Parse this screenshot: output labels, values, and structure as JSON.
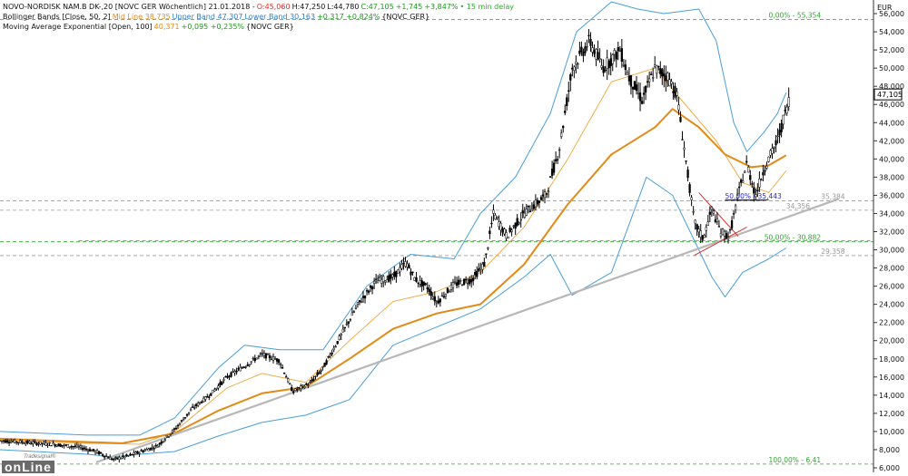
{
  "header": {
    "line1": {
      "instrument": "NOVO-NORDISK NAM.B DK-,20 [NOVC GER Wöchentlich] 21.01.2018 -",
      "open": "O:45,060",
      "high": "H:47,250",
      "low": "L:44,780",
      "close": "C:47,105",
      "change": "+1,745",
      "change_pct": "+3,847%",
      "delay": "• 15 min delay"
    },
    "line2": {
      "name": "Bollinger Bands [Close, 50, 2]",
      "mid": "Mid Line 38,735",
      "upper": "Upper Band 47,307",
      "lower": "Lower Band 30,163",
      "change": "+0,317 +0,824%",
      "suffix": "{NOVC GER}"
    },
    "line3": {
      "name": "Moving Average Exponential [Open, 100]",
      "value": "40,371",
      "change": "+0,095 +0,235%",
      "suffix": "{NOVC GER}"
    }
  },
  "logo": {
    "small": "Tradesignal®",
    "big": "onLine"
  },
  "colors": {
    "price": "#000000",
    "bollinger": "#4a9ed8",
    "ema": "#e38a16",
    "midline": "#f0a437",
    "trendline": "#b8b8b8",
    "fib_green": "#2aaa2a",
    "fib_gray": "#9a9a9a",
    "triangle": "#d9302b",
    "fib_blue": "#2a2ad0",
    "current_price_box": "#000000"
  },
  "chart_data": {
    "type": "candlestick",
    "currency": "EUR",
    "ylim": [
      5.5,
      57.5
    ],
    "y_ticks": [
      6,
      8,
      10,
      12,
      14,
      16,
      18,
      20,
      22,
      24,
      26,
      28,
      30,
      32,
      34,
      36,
      38,
      40,
      42,
      44,
      46,
      48,
      50,
      52,
      54,
      56
    ],
    "y_tick_labels": [
      "6,000",
      "8,000",
      "10,000",
      "12,000",
      "14,000",
      "16,000",
      "18,000",
      "20,000",
      "22,000",
      "24,000",
      "26,000",
      "28,000",
      "30,000",
      "32,000",
      "34,000",
      "36,000",
      "38,000",
      "40,000",
      "42,000",
      "44,000",
      "46,000",
      "48,000",
      "50,000",
      "52,000",
      "54,000",
      "56,000"
    ],
    "last_price": "47,105",
    "last_price_value": 47.105,
    "price_path": [
      [
        0,
        9.0
      ],
      [
        0.03,
        8.8
      ],
      [
        0.06,
        8.6
      ],
      [
        0.09,
        8.3
      ],
      [
        0.11,
        7.8
      ],
      [
        0.13,
        6.9
      ],
      [
        0.15,
        7.4
      ],
      [
        0.18,
        8.4
      ],
      [
        0.2,
        10.2
      ],
      [
        0.22,
        12.5
      ],
      [
        0.24,
        14.0
      ],
      [
        0.26,
        16.0
      ],
      [
        0.28,
        17.2
      ],
      [
        0.3,
        18.5
      ],
      [
        0.32,
        17.8
      ],
      [
        0.335,
        14.4
      ],
      [
        0.355,
        15.3
      ],
      [
        0.37,
        17.0
      ],
      [
        0.39,
        20.5
      ],
      [
        0.41,
        24.0
      ],
      [
        0.43,
        26.5
      ],
      [
        0.45,
        27.0
      ],
      [
        0.465,
        28.6
      ],
      [
        0.475,
        26.8
      ],
      [
        0.49,
        25.8
      ],
      [
        0.5,
        24.2
      ],
      [
        0.52,
        26.2
      ],
      [
        0.54,
        26.7
      ],
      [
        0.555,
        28.5
      ],
      [
        0.565,
        34.0
      ],
      [
        0.58,
        31.5
      ],
      [
        0.6,
        34.0
      ],
      [
        0.625,
        36.0
      ],
      [
        0.64,
        41.0
      ],
      [
        0.655,
        50.0
      ],
      [
        0.665,
        51.5
      ],
      [
        0.675,
        53.0
      ],
      [
        0.69,
        50.0
      ],
      [
        0.71,
        52.0
      ],
      [
        0.72,
        49.0
      ],
      [
        0.735,
        46.5
      ],
      [
        0.75,
        50.0
      ],
      [
        0.765,
        49.0
      ],
      [
        0.775,
        47.0
      ],
      [
        0.785,
        40.0
      ],
      [
        0.795,
        33.0
      ],
      [
        0.805,
        31.2
      ],
      [
        0.815,
        34.5
      ],
      [
        0.825,
        32.0
      ],
      [
        0.835,
        31.5
      ],
      [
        0.845,
        36.0
      ],
      [
        0.855,
        39.5
      ],
      [
        0.865,
        36.0
      ],
      [
        0.875,
        39.0
      ],
      [
        0.89,
        42.0
      ],
      [
        0.905,
        47.1
      ]
    ],
    "ema_path": [
      [
        0,
        9.2
      ],
      [
        0.08,
        8.9
      ],
      [
        0.14,
        8.7
      ],
      [
        0.2,
        9.8
      ],
      [
        0.25,
        12.3
      ],
      [
        0.3,
        14.2
      ],
      [
        0.35,
        14.9
      ],
      [
        0.4,
        18.0
      ],
      [
        0.45,
        21.3
      ],
      [
        0.5,
        23.0
      ],
      [
        0.55,
        24.0
      ],
      [
        0.6,
        28.4
      ],
      [
        0.65,
        35.0
      ],
      [
        0.7,
        40.5
      ],
      [
        0.75,
        43.5
      ],
      [
        0.77,
        45.5
      ],
      [
        0.8,
        43.5
      ],
      [
        0.83,
        40.5
      ],
      [
        0.86,
        39.1
      ],
      [
        0.88,
        39.3
      ],
      [
        0.9,
        40.4
      ]
    ],
    "midline_path": [
      [
        0,
        9.0
      ],
      [
        0.1,
        8.7
      ],
      [
        0.16,
        8.6
      ],
      [
        0.2,
        10.0
      ],
      [
        0.26,
        14.8
      ],
      [
        0.3,
        16.4
      ],
      [
        0.35,
        15.4
      ],
      [
        0.4,
        20.0
      ],
      [
        0.45,
        24.3
      ],
      [
        0.5,
        25.4
      ],
      [
        0.55,
        27.5
      ],
      [
        0.6,
        32.5
      ],
      [
        0.65,
        40.0
      ],
      [
        0.7,
        48.5
      ],
      [
        0.75,
        50.0
      ],
      [
        0.78,
        46.5
      ],
      [
        0.82,
        42.0
      ],
      [
        0.85,
        37.4
      ],
      [
        0.88,
        36.3
      ],
      [
        0.9,
        38.7
      ]
    ],
    "upper_band_path": [
      [
        0,
        10.0
      ],
      [
        0.1,
        9.6
      ],
      [
        0.16,
        9.6
      ],
      [
        0.2,
        11.5
      ],
      [
        0.25,
        17.0
      ],
      [
        0.28,
        19.5
      ],
      [
        0.32,
        19.0
      ],
      [
        0.37,
        19.0
      ],
      [
        0.42,
        26.0
      ],
      [
        0.47,
        29.5
      ],
      [
        0.52,
        29.0
      ],
      [
        0.55,
        34.0
      ],
      [
        0.59,
        38.0
      ],
      [
        0.63,
        45.0
      ],
      [
        0.66,
        54.0
      ],
      [
        0.7,
        57.3
      ],
      [
        0.73,
        56.5
      ],
      [
        0.76,
        56.0
      ],
      [
        0.8,
        56.5
      ],
      [
        0.82,
        53.0
      ],
      [
        0.84,
        44.0
      ],
      [
        0.855,
        40.8
      ],
      [
        0.875,
        43.0
      ],
      [
        0.89,
        45.0
      ],
      [
        0.9,
        47.3
      ]
    ],
    "lower_band_path": [
      [
        0,
        8.0
      ],
      [
        0.1,
        7.5
      ],
      [
        0.13,
        7.2
      ],
      [
        0.16,
        7.5
      ],
      [
        0.2,
        7.8
      ],
      [
        0.25,
        9.5
      ],
      [
        0.3,
        11.0
      ],
      [
        0.35,
        11.8
      ],
      [
        0.4,
        13.5
      ],
      [
        0.45,
        19.5
      ],
      [
        0.5,
        21.5
      ],
      [
        0.55,
        23.5
      ],
      [
        0.6,
        27.0
      ],
      [
        0.63,
        29.5
      ],
      [
        0.655,
        25.0
      ],
      [
        0.7,
        27.5
      ],
      [
        0.74,
        38.0
      ],
      [
        0.77,
        36.0
      ],
      [
        0.8,
        30.0
      ],
      [
        0.815,
        27.0
      ],
      [
        0.83,
        24.8
      ],
      [
        0.85,
        27.5
      ],
      [
        0.88,
        29.0
      ],
      [
        0.9,
        30.2
      ]
    ],
    "trendline": [
      [
        0.11,
        6.6
      ],
      [
        0.96,
        35.6
      ]
    ],
    "triangle": {
      "upper": [
        [
          0.8,
          36.3
        ],
        [
          0.845,
          31.5
        ]
      ],
      "lower": [
        [
          0.795,
          29.4
        ],
        [
          0.855,
          32.5
        ]
      ],
      "box_top": [
        [
          0.83,
          35.5
        ],
        [
          0.88,
          35.5
        ]
      ]
    },
    "fib_levels": [
      {
        "value": 55.354,
        "label": "0,00% - 55,354",
        "color": "fib_green",
        "x_label": 0.88
      },
      {
        "value": 35.384,
        "label": "35,384",
        "color": "fib_gray",
        "x_label": 0.94
      },
      {
        "value": 34.356,
        "label": "34,356",
        "color": "fib_gray",
        "x_label": 0.9
      },
      {
        "value": 35.443,
        "label": "50,00% - 35,443",
        "color": "fib_blue",
        "x_label": 0.83
      },
      {
        "value": 31.0,
        "label": "",
        "color": "fib_green",
        "x_label": 0.83
      },
      {
        "value": 30.882,
        "label": "50,00% - 30,882",
        "color": "fib_green",
        "x_label": 0.875
      },
      {
        "value": 29.358,
        "label": "29,358",
        "color": "fib_gray",
        "x_label": 0.94
      },
      {
        "value": 6.41,
        "label": "100,00% - 6,41",
        "color": "fib_green",
        "x_label": 0.88
      }
    ]
  }
}
